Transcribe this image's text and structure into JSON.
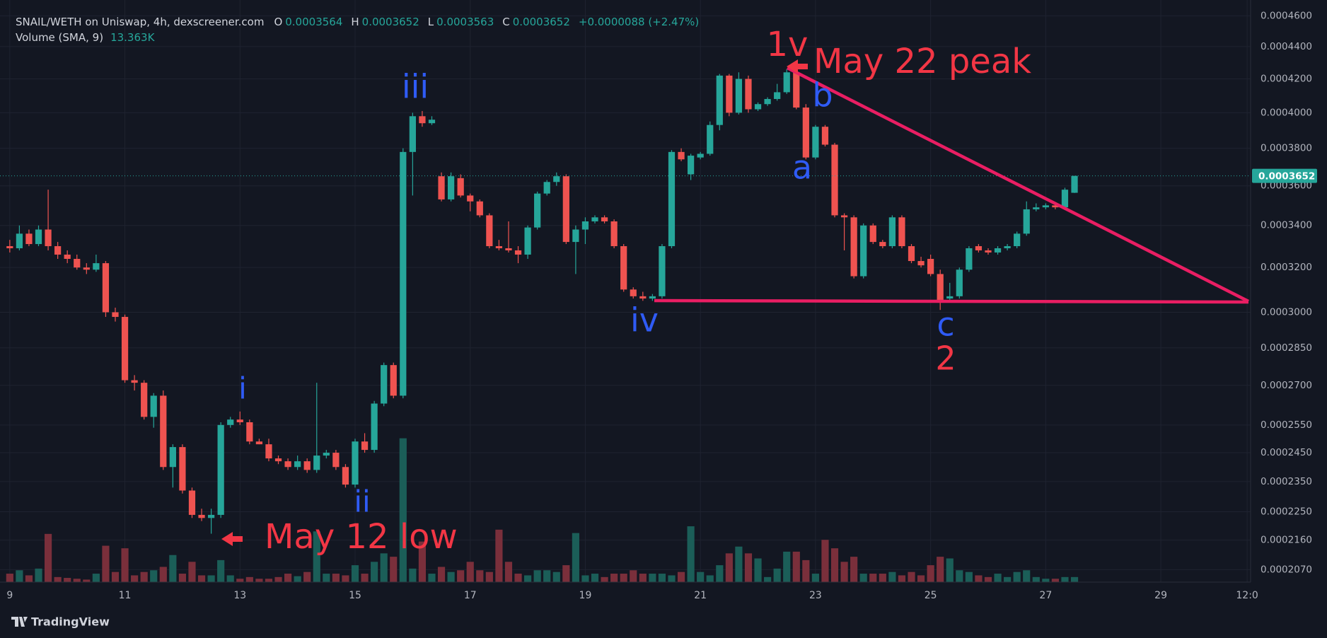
{
  "chart_data": {
    "type": "candlestick",
    "title": "SNAIL/WETH on Uniswap, 4h, dexscreener.com",
    "ohlc_labels": [
      "O",
      "H",
      "L",
      "C"
    ],
    "change": "+0.0000088 (+2.47%)",
    "volume_label": "Volume (SMA, 9)",
    "volume_sma": "13.363K",
    "up_color": "#26a69a",
    "down_color": "#ef5350",
    "volume_up_color": "#1b5e58",
    "volume_down_color": "#7a2f3b",
    "log_scale": true,
    "grid": true,
    "xlim": [
      8.83,
      30.56
    ],
    "xticks": [
      9,
      11,
      13,
      15,
      17,
      19,
      21,
      23,
      25,
      27,
      29,
      {
        "value": 30.5,
        "label": "12:0"
      }
    ],
    "ylim": [
      0.0002033,
      0.0004706
    ],
    "yticks": [
      {
        "value": 0.00046,
        "label": "0.0004600"
      },
      {
        "value": 0.00044,
        "label": "0.0004400"
      },
      {
        "value": 0.00042,
        "label": "0.0004200"
      },
      {
        "value": 0.0004,
        "label": "0.0004000"
      },
      {
        "value": 0.00038,
        "label": "0.0003800"
      },
      {
        "value": 0.00036,
        "label": "0.0003600"
      },
      {
        "value": 0.00034,
        "label": "0.0003400"
      },
      {
        "value": 0.00032,
        "label": "0.0003200"
      },
      {
        "value": 0.0003,
        "label": "0.0003000"
      },
      {
        "value": 0.000285,
        "label": "0.0002850"
      },
      {
        "value": 0.00027,
        "label": "0.0002700"
      },
      {
        "value": 0.000255,
        "label": "0.0002550"
      },
      {
        "value": 0.000245,
        "label": "0.0002450"
      },
      {
        "value": 0.000235,
        "label": "0.0002350"
      },
      {
        "value": 0.000225,
        "label": "0.0002250"
      },
      {
        "value": 0.000216,
        "label": "0.0002160"
      },
      {
        "value": 0.000207,
        "label": "0.0002070"
      }
    ],
    "y2lim": [
      0,
      688
    ],
    "x": [
      9,
      9.1667,
      9.3333,
      9.5,
      9.6667,
      9.8333,
      10,
      10.1667,
      10.3333,
      10.5,
      10.6667,
      10.8333,
      11,
      11.1667,
      11.3333,
      11.5,
      11.6667,
      11.8333,
      12,
      12.1667,
      12.3333,
      12.5,
      12.6667,
      12.8333,
      13,
      13.1667,
      13.3333,
      13.5,
      13.6667,
      13.8333,
      14,
      14.1667,
      14.3333,
      14.5,
      14.6667,
      14.8333,
      15,
      15.1667,
      15.3333,
      15.5,
      15.6667,
      15.8333,
      16,
      16.1667,
      16.3333,
      16.5,
      16.6667,
      16.8333,
      17,
      17.1667,
      17.3333,
      17.5,
      17.6667,
      17.8333,
      18,
      18.1667,
      18.3333,
      18.5,
      18.6667,
      18.8333,
      19,
      19.1667,
      19.3333,
      19.5,
      19.6667,
      19.8333,
      20,
      20.1667,
      20.3333,
      20.5,
      20.6667,
      20.8333,
      21,
      21.1667,
      21.3333,
      21.5,
      21.6667,
      21.8333,
      22,
      22.1667,
      22.3333,
      22.5,
      22.6667,
      22.8333,
      23,
      23.1667,
      23.3333,
      23.5,
      23.6667,
      23.8333,
      24,
      24.1667,
      24.3333,
      24.5,
      24.6667,
      24.8333,
      25,
      25.1667,
      25.3333,
      25.5,
      25.6667,
      25.8333,
      26,
      26.1667,
      26.3333,
      26.5,
      26.6667,
      26.8333,
      27,
      27.1667,
      27.3333,
      27.5
    ],
    "open": [
      0.00033,
      0.000329,
      0.000336,
      0.000331,
      0.000338,
      0.00033,
      0.000326,
      0.000324,
      0.00032,
      0.000319,
      0.000322,
      0.0003,
      0.000298,
      0.000272,
      0.000271,
      0.000258,
      0.000266,
      0.00024,
      0.000247,
      0.000232,
      0.000224,
      0.000223,
      0.000224,
      0.000255,
      0.000257,
      0.000256,
      0.000249,
      0.000248,
      0.000243,
      0.000242,
      0.00024,
      0.000242,
      0.000239,
      0.000244,
      0.000245,
      0.00024,
      0.000234,
      0.000249,
      0.000246,
      0.000263,
      0.000278,
      0.000266,
      0.000378,
      0.000398,
      0.000394,
      0.000365,
      0.000353,
      0.000364,
      0.000355,
      0.000352,
      0.000345,
      0.00033,
      0.000329,
      0.000328,
      0.000326,
      0.000339,
      0.000356,
      0.000362,
      0.000365,
      0.000332,
      0.000338,
      0.000342,
      0.000344,
      0.000342,
      0.00033,
      0.00031,
      0.000307,
      0.000306,
      0.000307,
      0.00033,
      0.000378,
      0.000366,
      0.000375,
      0.000377,
      0.000393,
      0.000422,
      0.0004,
      0.00042,
      0.000402,
      0.000405,
      0.000408,
      0.000412,
      0.000424,
      0.000403,
      0.000375,
      0.000392,
      0.000382,
      0.000345,
      0.000344,
      0.000316,
      0.00034,
      0.000332,
      0.00033,
      0.000344,
      0.00033,
      0.000323,
      0.000324,
      0.000317,
      0.000306,
      0.000307,
      0.000319,
      0.00033,
      0.000328,
      0.000327,
      0.000329,
      0.00033,
      0.000336,
      0.000348,
      0.000349,
      0.00035,
      0.000349,
      0.0003564
    ],
    "high": [
      0.000333,
      0.00034,
      0.000338,
      0.00034,
      0.000358,
      0.000332,
      0.000328,
      0.000326,
      0.000322,
      0.000326,
      0.000323,
      0.000302,
      0.000299,
      0.000274,
      0.000272,
      0.000267,
      0.000268,
      0.000248,
      0.000248,
      0.000233,
      0.000226,
      0.000226,
      0.000256,
      0.000258,
      0.00026,
      0.000257,
      0.00025,
      0.00025,
      0.000244,
      0.000243,
      0.000244,
      0.000243,
      0.000271,
      0.000246,
      0.000246,
      0.000241,
      0.00025,
      0.000252,
      0.000264,
      0.000279,
      0.000279,
      0.00038,
      0.0004,
      0.000401,
      0.000398,
      0.000367,
      0.000367,
      0.000366,
      0.000356,
      0.000353,
      0.000346,
      0.000333,
      0.000342,
      0.00033,
      0.00034,
      0.000357,
      0.000363,
      0.000367,
      0.000366,
      0.00034,
      0.000344,
      0.000345,
      0.000345,
      0.000343,
      0.000331,
      0.000311,
      0.000309,
      0.000308,
      0.000331,
      0.000379,
      0.00038,
      0.000377,
      0.000378,
      0.000395,
      0.000423,
      0.000423,
      0.000424,
      0.000422,
      0.000406,
      0.000409,
      0.000417,
      0.000426,
      0.000425,
      0.000405,
      0.000393,
      0.000393,
      0.000383,
      0.000346,
      0.000345,
      0.000341,
      0.000341,
      0.000333,
      0.000345,
      0.000345,
      0.000331,
      0.000325,
      0.000326,
      0.000319,
      0.000313,
      0.00032,
      0.00033,
      0.000331,
      0.000329,
      0.00033,
      0.000331,
      0.000337,
      0.000352,
      0.000351,
      0.000351,
      0.000351,
      0.000359,
      0.0003652
    ],
    "low": [
      0.000327,
      0.000328,
      0.00033,
      0.00033,
      0.000328,
      0.000324,
      0.000322,
      0.000319,
      0.000317,
      0.000318,
      0.000298,
      0.000296,
      0.000271,
      0.000268,
      0.000257,
      0.000254,
      0.000239,
      0.000233,
      0.000231,
      0.000223,
      0.000222,
      0.000218,
      0.000223,
      0.000254,
      0.000255,
      0.000248,
      0.000248,
      0.000242,
      0.000241,
      0.000239,
      0.000239,
      0.000238,
      0.000238,
      0.000243,
      0.000239,
      0.000233,
      0.000233,
      0.000245,
      0.000245,
      0.000262,
      0.000265,
      0.000265,
      0.000355,
      0.000392,
      0.000393,
      0.000352,
      0.000352,
      0.000354,
      0.000347,
      0.000344,
      0.000329,
      0.000328,
      0.000327,
      0.000322,
      0.000324,
      0.000338,
      0.000355,
      0.00036,
      0.000331,
      0.000317,
      0.000331,
      0.000341,
      0.000341,
      0.000329,
      0.000309,
      0.000306,
      0.000305,
      0.000305,
      0.000306,
      0.000329,
      0.000373,
      0.000363,
      0.000374,
      0.000376,
      0.00039,
      0.000398,
      0.000399,
      0.0004,
      0.000401,
      0.000404,
      0.000407,
      0.000411,
      0.000402,
      0.000374,
      0.000374,
      0.000381,
      0.000344,
      0.000328,
      0.000315,
      0.000315,
      0.000331,
      0.000329,
      0.000329,
      0.000329,
      0.000322,
      0.00032,
      0.000316,
      0.000301,
      0.000305,
      0.000306,
      0.000318,
      0.000327,
      0.000326,
      0.000326,
      0.000328,
      0.000329,
      0.000335,
      0.000347,
      0.000348,
      0.000348,
      0.000348,
      0.0003563
    ],
    "close": [
      0.000329,
      0.000336,
      0.000331,
      0.000338,
      0.00033,
      0.000326,
      0.000324,
      0.00032,
      0.000319,
      0.000322,
      0.0003,
      0.000298,
      0.000272,
      0.000271,
      0.000258,
      0.000266,
      0.00024,
      0.000247,
      0.000232,
      0.000224,
      0.000223,
      0.000224,
      0.000255,
      0.000257,
      0.000256,
      0.000249,
      0.000248,
      0.000243,
      0.000242,
      0.00024,
      0.000242,
      0.000239,
      0.000244,
      0.000245,
      0.00024,
      0.000234,
      0.000249,
      0.000246,
      0.000263,
      0.000278,
      0.000266,
      0.000378,
      0.000398,
      0.000394,
      0.000396,
      0.000353,
      0.000365,
      0.000355,
      0.000352,
      0.000345,
      0.00033,
      0.000329,
      0.000328,
      0.000326,
      0.000339,
      0.000356,
      0.000362,
      0.000365,
      0.000332,
      0.000338,
      0.000342,
      0.000344,
      0.000342,
      0.00033,
      0.00031,
      0.000307,
      0.000306,
      0.000307,
      0.00033,
      0.000378,
      0.000374,
      0.000376,
      0.000377,
      0.000393,
      0.000422,
      0.0004,
      0.00042,
      0.000402,
      0.000405,
      0.000408,
      0.000412,
      0.000424,
      0.000403,
      0.000375,
      0.000392,
      0.000382,
      0.000345,
      0.000344,
      0.000316,
      0.00034,
      0.000332,
      0.00033,
      0.000344,
      0.00033,
      0.000323,
      0.000321,
      0.000317,
      0.000305,
      0.000307,
      0.000319,
      0.000329,
      0.000328,
      0.000327,
      0.000329,
      0.00033,
      0.000336,
      0.000348,
      0.000349,
      0.00035,
      0.000349,
      0.000358,
      0.0003652
    ],
    "volume": [
      10,
      14,
      8,
      16,
      57,
      6,
      5,
      4,
      3,
      10,
      43,
      12,
      40,
      8,
      12,
      14,
      18,
      32,
      10,
      24,
      8,
      8,
      26,
      8,
      4,
      6,
      4,
      4,
      6,
      10,
      7,
      12,
      60,
      10,
      10,
      8,
      20,
      10,
      24,
      34,
      30,
      170,
      16,
      48,
      10,
      18,
      12,
      14,
      24,
      14,
      12,
      62,
      24,
      10,
      8,
      14,
      14,
      12,
      20,
      58,
      8,
      10,
      6,
      10,
      10,
      14,
      10,
      10,
      10,
      8,
      12,
      66,
      12,
      8,
      20,
      34,
      42,
      34,
      28,
      6,
      16,
      36,
      36,
      26,
      10,
      50,
      40,
      24,
      30,
      10,
      10,
      10,
      12,
      8,
      12,
      8,
      20,
      30,
      28,
      14,
      12,
      8,
      6,
      10,
      6,
      12,
      14,
      6,
      4,
      4,
      6,
      6
    ],
    "annotations": [
      {
        "text": "i",
        "color": "#2f5bf5"
      },
      {
        "text": "ii",
        "color": "#2f5bf5"
      },
      {
        "text": "iii",
        "color": "#2f5bf5"
      },
      {
        "text": "iv",
        "color": "#2f5bf5"
      },
      {
        "text": "1v",
        "color": "#f23645"
      },
      {
        "text": "May 22 peak",
        "color": "#f23645"
      },
      {
        "text": "a",
        "color": "#2f5bf5"
      },
      {
        "text": "b",
        "color": "#2f5bf5"
      },
      {
        "text": "c",
        "color": "#2f5bf5"
      },
      {
        "text": "2",
        "color": "#f23645"
      },
      {
        "text": "May 12 low",
        "color": "#f23645"
      }
    ]
  },
  "branding": "TradingView"
}
